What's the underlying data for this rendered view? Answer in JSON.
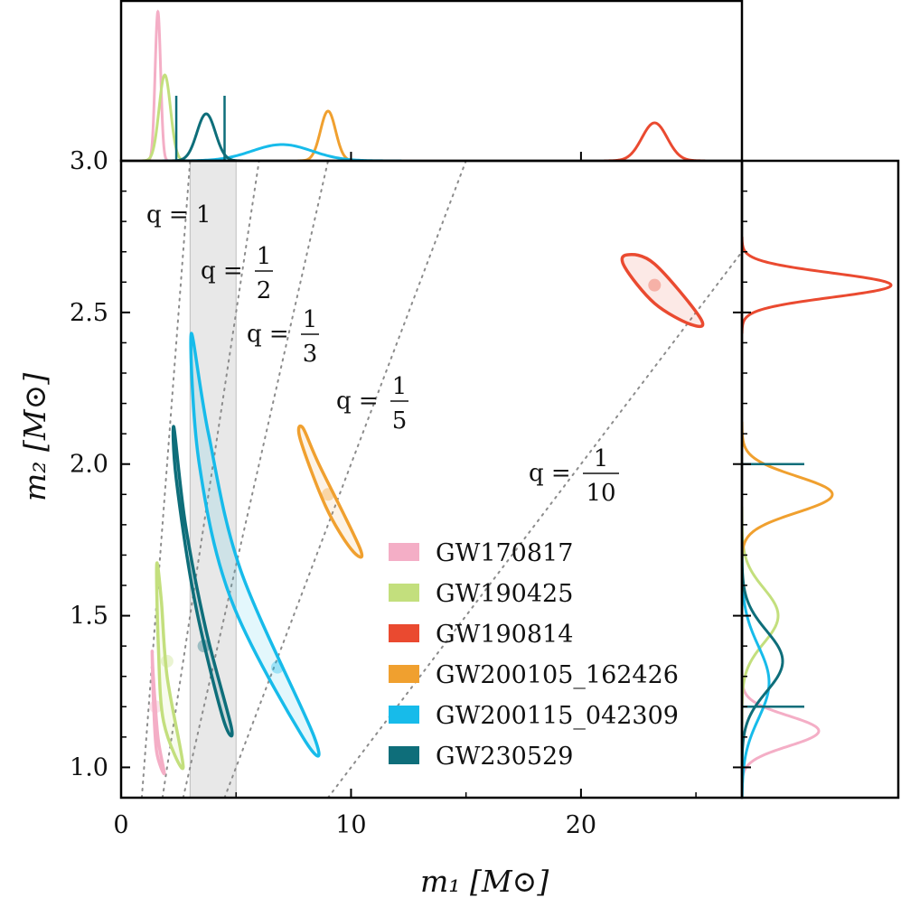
{
  "chart_data": {
    "type": "scatter",
    "title": "",
    "xlabel": "m₁ [M⊙]",
    "ylabel": "m₂ [M⊙]",
    "xlim": [
      0,
      27
    ],
    "ylim": [
      0.9,
      3.0
    ],
    "xticks": [
      0,
      10,
      20
    ],
    "yticks": [
      1.0,
      1.5,
      2.0,
      2.5,
      3.0
    ],
    "xtick_labels": [
      "0",
      "10",
      "20"
    ],
    "ytick_labels": [
      "1.0",
      "1.5",
      "2.0",
      "2.5",
      "3.0"
    ],
    "shaded_band": {
      "m1_min": 3,
      "m1_max": 5
    },
    "mass_ratio_lines": [
      {
        "q": 1,
        "label_text": "q = 1",
        "num": "",
        "den": ""
      },
      {
        "q": 0.5,
        "label_text": "q =",
        "num": "1",
        "den": "2"
      },
      {
        "q": 0.3333,
        "label_text": "q =",
        "num": "1",
        "den": "3"
      },
      {
        "q": 0.2,
        "label_text": "q =",
        "num": "1",
        "den": "5"
      },
      {
        "q": 0.1,
        "label_text": "q =",
        "num": "1",
        "den": "10"
      }
    ],
    "series": [
      {
        "name": "GW170817",
        "color": "#f4aec6",
        "m1_center": 1.5,
        "m2_center": 1.2,
        "contour": [
          [
            1.35,
            1.38
          ],
          [
            1.42,
            1.2
          ],
          [
            1.55,
            1.05
          ],
          [
            1.88,
            0.98
          ],
          [
            1.6,
            1.1
          ],
          [
            1.4,
            1.3
          ]
        ],
        "marginal_m1_peak": 1.6,
        "marginal_m2_peak": 1.12
      },
      {
        "name": "GW190425",
        "color": "#c3df7d",
        "m1_center": 2.0,
        "m2_center": 1.35,
        "contour": [
          [
            1.55,
            1.67
          ],
          [
            1.62,
            1.4
          ],
          [
            1.85,
            1.15
          ],
          [
            2.7,
            1.0
          ],
          [
            2.0,
            1.3
          ],
          [
            1.75,
            1.55
          ]
        ],
        "marginal_m1_peak": 1.9,
        "marginal_m2_peak": 1.5
      },
      {
        "name": "GW190814",
        "color": "#ea4a30",
        "m1_center": 23.2,
        "m2_center": 2.59,
        "contour": [
          [
            22.0,
            2.69
          ],
          [
            23.2,
            2.66
          ],
          [
            25.2,
            2.48
          ],
          [
            24.8,
            2.46
          ],
          [
            23.2,
            2.53
          ],
          [
            21.9,
            2.65
          ]
        ],
        "marginal_m1_peak": 23.2,
        "marginal_m2_peak": 2.59
      },
      {
        "name": "GW200105_162426",
        "color": "#f0a02f",
        "m1_center": 9.0,
        "m2_center": 1.9,
        "contour": [
          [
            7.9,
            2.12
          ],
          [
            8.6,
            2.0
          ],
          [
            10.4,
            1.72
          ],
          [
            10.0,
            1.72
          ],
          [
            8.9,
            1.86
          ],
          [
            7.8,
            2.08
          ]
        ],
        "marginal_m1_peak": 9.0,
        "marginal_m2_peak": 1.9
      },
      {
        "name": "GW200115_042309",
        "color": "#17bbea",
        "m1_center": 6.8,
        "m2_center": 1.33,
        "contour": [
          [
            3.05,
            2.43
          ],
          [
            3.8,
            2.1
          ],
          [
            5.2,
            1.65
          ],
          [
            8.4,
            1.1
          ],
          [
            7.9,
            1.1
          ],
          [
            4.8,
            1.55
          ],
          [
            3.4,
            2.0
          ]
        ],
        "marginal_m1_peak": 7.0,
        "marginal_m2_peak": 1.28
      },
      {
        "name": "GW230529",
        "color": "#0e6e7a",
        "m1_center": 3.6,
        "m2_center": 1.4,
        "contour": [
          [
            2.3,
            2.12
          ],
          [
            2.8,
            1.8
          ],
          [
            3.7,
            1.45
          ],
          [
            4.8,
            1.13
          ],
          [
            4.4,
            1.17
          ],
          [
            3.2,
            1.55
          ],
          [
            2.4,
            1.95
          ]
        ],
        "marginal_m1_peak": 3.7,
        "marginal_m2_peak": 1.35
      }
    ],
    "legend_position": "lower-center"
  }
}
